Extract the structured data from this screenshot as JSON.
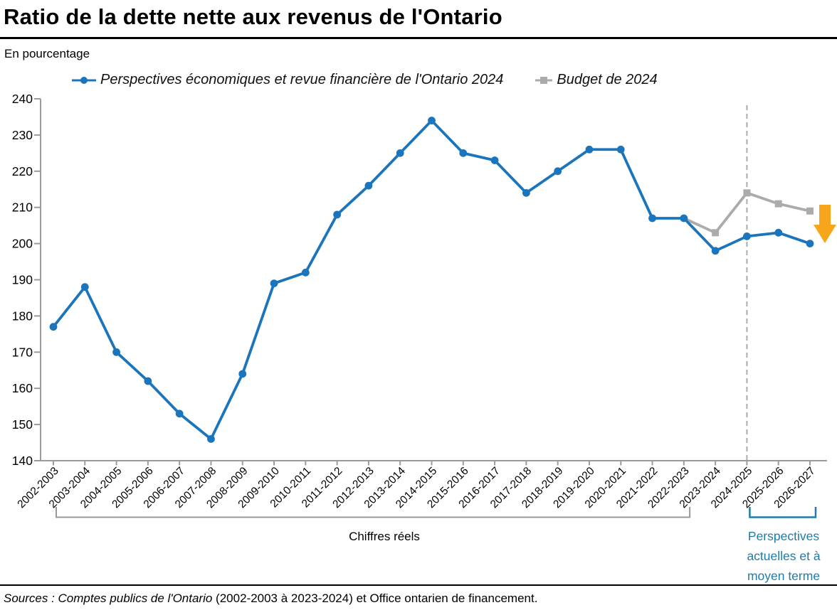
{
  "header": {
    "title": "Ratio de la dette nette aux revenus de l'Ontario",
    "unit_label": "En pourcentage"
  },
  "chart_data": {
    "type": "line",
    "title": "Ratio de la dette nette aux revenus de l'Ontario",
    "ylabel": "En pourcentage",
    "ylim": [
      140,
      240
    ],
    "ytick_step": 10,
    "grid": false,
    "legend_position": "top",
    "categories": [
      "2002-2003",
      "2003-2004",
      "2004-2005",
      "2005-2006",
      "2006-2007",
      "2007-2008",
      "2008-2009",
      "2009-2010",
      "2010-2011",
      "2011-2012",
      "2012-2013",
      "2013-2014",
      "2014-2015",
      "2015-2016",
      "2016-2017",
      "2017-2018",
      "2018-2019",
      "2019-2020",
      "2020-2021",
      "2021-2022",
      "2022-2023",
      "2023-2024",
      "2024-2025",
      "2025-2026",
      "2026-2027"
    ],
    "series": [
      {
        "key": "outlook",
        "name": "Perspectives économiques et revue financière de l'Ontario 2024",
        "color": "#1B75BC",
        "marker": "circle",
        "values": [
          177,
          188,
          170,
          162,
          153,
          146,
          164,
          189,
          192,
          208,
          216,
          225,
          234,
          225,
          223,
          214,
          220,
          226,
          226,
          207,
          207,
          198,
          202,
          203,
          200
        ]
      },
      {
        "key": "budget",
        "name": "Budget de 2024",
        "color": "#ABABAB",
        "marker": "square",
        "connect_from": {
          "category": "2022-2023",
          "value": 207
        },
        "values": [
          null,
          null,
          null,
          null,
          null,
          null,
          null,
          null,
          null,
          null,
          null,
          null,
          null,
          null,
          null,
          null,
          null,
          null,
          null,
          null,
          null,
          203,
          214,
          211,
          209
        ]
      }
    ],
    "divider": {
      "category": "2024-2025",
      "style": "dashed",
      "color": "#ABABAB"
    },
    "arrow": {
      "direction": "down",
      "color": "#F7A51B"
    },
    "axis_color": "#9B9B9B"
  },
  "annotations": {
    "actuals": {
      "label": "Chiffres réels",
      "from": "2002-2003",
      "to": "2023-2024",
      "bracket_color": "#999999",
      "text_color": "#000000"
    },
    "outlook": {
      "label": "Perspectives actuelles et à moyen terme",
      "label_lines": [
        "Perspectives",
        "actuelles et à",
        "moyen terme"
      ],
      "from": "2024-2025",
      "to": "2026-2027",
      "bracket_color": "#1E7CA8",
      "text_color": "#1E7CA8"
    }
  },
  "footer": {
    "source_italic": "Sources : Comptes publics de l'Ontario",
    "source_regular": " (2002-2003 à 2023-2024) et Office ontarien de financement."
  }
}
